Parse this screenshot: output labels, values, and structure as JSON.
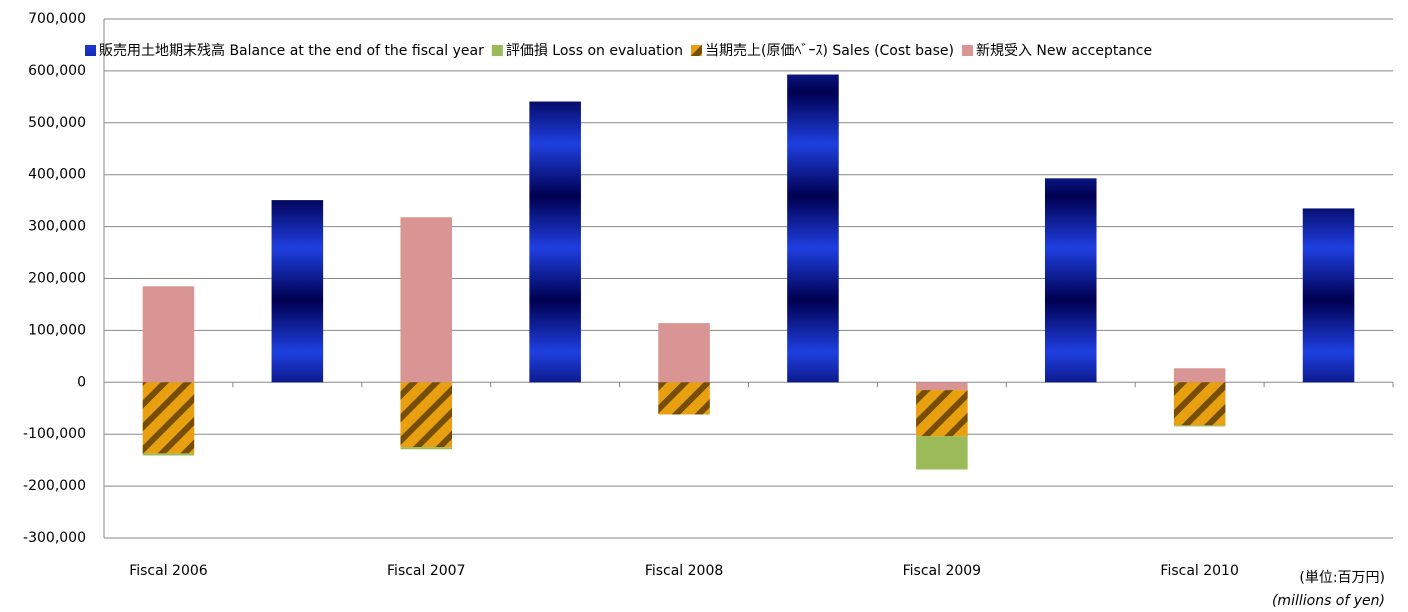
{
  "chart_data": {
    "type": "bar",
    "categories": [
      "Fiscal 2006",
      null,
      "Fiscal 2007",
      null,
      "Fiscal 2008",
      null,
      "Fiscal 2009",
      null,
      "Fiscal 2010",
      null
    ],
    "series": [
      {
        "name": "販売用土地期末残高 Balance at the end of the fiscal year",
        "color": "#1f3fe0",
        "values": [
          null,
          351000,
          null,
          541000,
          null,
          593000,
          null,
          393000,
          null,
          335000
        ]
      },
      {
        "name": "評価損 Loss on evaluation",
        "color": "#9bbb59",
        "values": [
          -4000,
          null,
          -4000,
          null,
          null,
          null,
          -64000,
          null,
          -2000,
          null
        ]
      },
      {
        "name": "当期売上(原価ﾍﾞｰｽ) Sales (Cost base)",
        "color": "#e8a010",
        "values": [
          -137000,
          null,
          -125000,
          null,
          -62000,
          null,
          -89000,
          null,
          -83000,
          null
        ]
      },
      {
        "name": "新規受入 New acceptance",
        "color": "#d99594",
        "values": [
          185000,
          null,
          318000,
          null,
          114000,
          null,
          -15000,
          null,
          27000,
          null
        ]
      }
    ],
    "ylim": [
      -300000,
      700000
    ],
    "yticks": [
      {
        "value": -300000,
        "label": "-300,000"
      },
      {
        "value": -200000,
        "label": "-200,000"
      },
      {
        "value": -100000,
        "label": "-100,000"
      },
      0,
      {
        "value": 100000,
        "label": "100,000"
      },
      {
        "value": 200000,
        "label": "200,000"
      },
      {
        "value": 300000,
        "label": "300,000"
      },
      {
        "value": 400000,
        "label": "400,000"
      },
      {
        "value": 500000,
        "label": "500,000"
      },
      {
        "value": 600000,
        "label": "600,000"
      },
      {
        "value": 700000,
        "label": "700,000"
      }
    ],
    "grid": true,
    "annotations": [
      "(単位:百万円)",
      "(millions of yen)"
    ]
  }
}
